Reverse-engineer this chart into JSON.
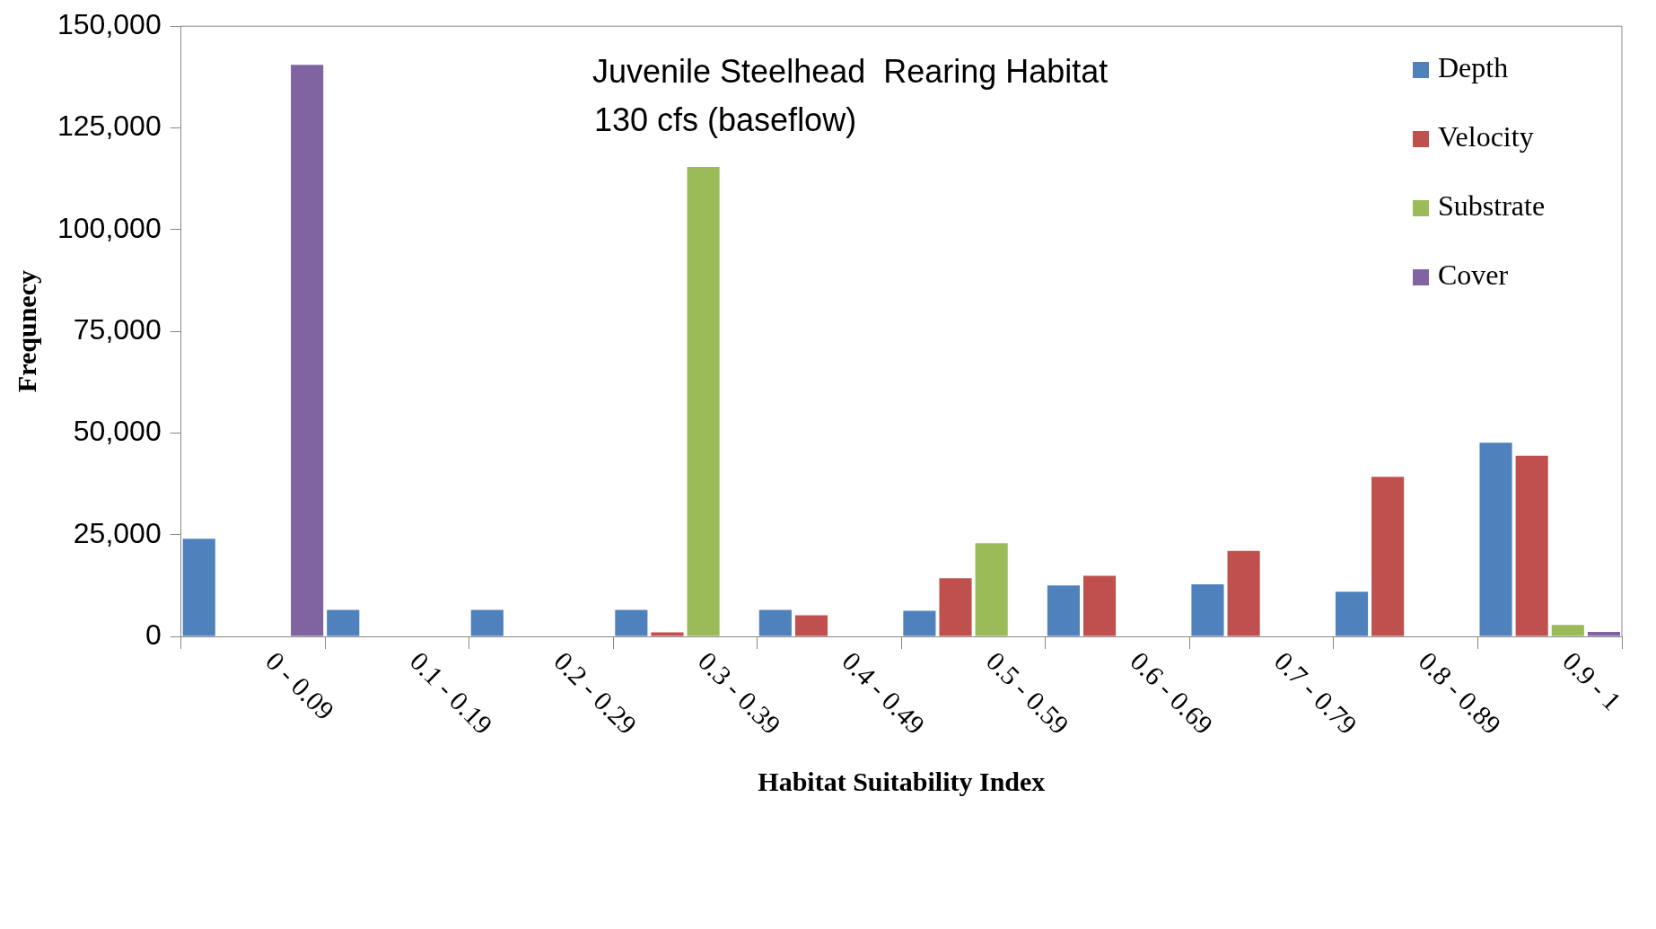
{
  "chart_data": {
    "type": "bar",
    "title": "Juvenile Steelhead  Rearing Habitat",
    "subtitle": "130 cfs (baseflow)",
    "xlabel": "Habitat Suitability Index",
    "ylabel": "Frequnecy",
    "categories": [
      "0 - 0.09",
      "0.1 - 0.19",
      "0.2 - 0.29",
      "0.3 - 0.39",
      "0.4 - 0.49",
      "0.5 - 0.59",
      "0.6 - 0.69",
      "0.7 - 0.79",
      "0.8 - 0.89",
      "0.9 - 1"
    ],
    "series": [
      {
        "name": "Depth",
        "color": "#4f81bd",
        "values": [
          24000,
          6500,
          6500,
          6500,
          6500,
          6300,
          12500,
          12800,
          11000,
          47600
        ]
      },
      {
        "name": "Velocity",
        "color": "#c0504d",
        "values": [
          0,
          0,
          0,
          1000,
          5200,
          14300,
          14900,
          21000,
          39200,
          44400
        ]
      },
      {
        "name": "Substrate",
        "color": "#9bbb59",
        "values": [
          0,
          0,
          0,
          115400,
          0,
          22900,
          0,
          0,
          0,
          2800
        ]
      },
      {
        "name": "Cover",
        "color": "#8064a2",
        "values": [
          140500,
          0,
          0,
          0,
          0,
          0,
          0,
          0,
          0,
          1100
        ]
      }
    ],
    "ylim": [
      0,
      150000
    ],
    "yticks": [
      0,
      {
        "value": 25000,
        "label": "25,000"
      },
      {
        "value": 50000,
        "label": "50,000"
      },
      {
        "value": 75000,
        "label": "75,000"
      },
      {
        "value": 100000,
        "label": "100,000"
      },
      {
        "value": 125000,
        "label": "125,000"
      },
      {
        "value": 150000,
        "label": "150,000"
      }
    ],
    "grid": false,
    "legend": "top right"
  }
}
